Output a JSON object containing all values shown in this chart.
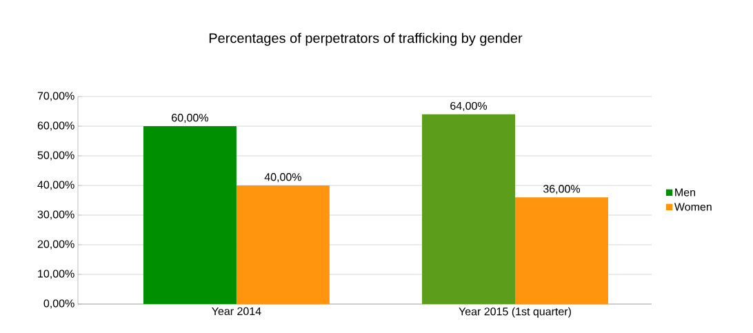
{
  "chart_data": {
    "type": "bar",
    "title": "Percentages of perpetrators of trafficking by gender",
    "categories": [
      "Year 2014",
      "Year 2015 (1st quarter)"
    ],
    "series": [
      {
        "name": "Men",
        "color": "#008f00",
        "colors": [
          "#008f00",
          "#5c9e1c"
        ],
        "values": [
          60,
          64
        ],
        "value_labels": [
          "60,00%",
          "64,00%"
        ]
      },
      {
        "name": "Women",
        "color": "#ff950e",
        "colors": [
          "#ff950e",
          "#ff950e"
        ],
        "values": [
          40,
          36
        ],
        "value_labels": [
          "40,00%",
          "36,00%"
        ]
      }
    ],
    "ylim": [
      0,
      70
    ],
    "yticks": [
      {
        "value": 0,
        "label": "0,00%"
      },
      {
        "value": 10,
        "label": "10,00%"
      },
      {
        "value": 20,
        "label": "20,00%"
      },
      {
        "value": 30,
        "label": "30,00%"
      },
      {
        "value": 40,
        "label": "40,00%"
      },
      {
        "value": 50,
        "label": "50,00%"
      },
      {
        "value": 60,
        "label": "60,00%"
      },
      {
        "value": 70,
        "label": "70,00%"
      }
    ],
    "grid": "y",
    "legend": "right"
  }
}
